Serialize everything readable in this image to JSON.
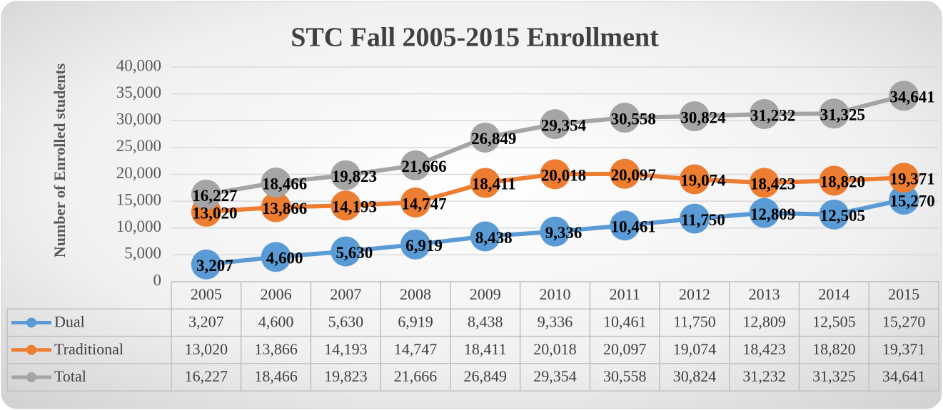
{
  "chart_data": {
    "type": "line",
    "title": "STC Fall 2005-2015 Enrollment",
    "y_label": "Number of Enrolled students",
    "categories": [
      "2005",
      "2006",
      "2007",
      "2008",
      "2009",
      "2010",
      "2011",
      "2012",
      "2013",
      "2014",
      "2015"
    ],
    "series": [
      {
        "name": "Dual",
        "color": "#5b9bd5",
        "values": [
          3207,
          4600,
          5630,
          6919,
          8438,
          9336,
          10461,
          11750,
          12809,
          12505,
          15270
        ],
        "value_labels": [
          "3,207",
          "4,600",
          "5,630",
          "6,919",
          "8,438",
          "9,336",
          "10,461",
          "11,750",
          "12,809",
          "12,505",
          "15,270"
        ]
      },
      {
        "name": "Traditional",
        "color": "#ed7d31",
        "values": [
          13020,
          13866,
          14193,
          14747,
          18411,
          20018,
          20097,
          19074,
          18423,
          18820,
          19371
        ],
        "value_labels": [
          "13,020",
          "13,866",
          "14,193",
          "14,747",
          "18,411",
          "20,018",
          "20,097",
          "19,074",
          "18,423",
          "18,820",
          "19,371"
        ]
      },
      {
        "name": "Total",
        "color": "#a5a5a5",
        "values": [
          16227,
          18466,
          19823,
          21666,
          26849,
          29354,
          30558,
          30824,
          31232,
          31325,
          34641
        ],
        "value_labels": [
          "16,227",
          "18,466",
          "19,823",
          "21,666",
          "26,849",
          "29,354",
          "30,558",
          "30,824",
          "31,232",
          "31,325",
          "34,641"
        ]
      }
    ],
    "ylim": [
      0,
      40000
    ],
    "yticks": [
      0,
      {
        "value": 5000,
        "label": "5,000"
      },
      {
        "value": 10000,
        "label": "10,000"
      },
      {
        "value": 15000,
        "label": "15,000"
      },
      {
        "value": 20000,
        "label": "20,000"
      },
      {
        "value": 25000,
        "label": "25,000"
      },
      {
        "value": 30000,
        "label": "30,000"
      },
      {
        "value": 35000,
        "label": "35,000"
      },
      {
        "value": 40000,
        "label": "40,000"
      }
    ],
    "grid": true,
    "data_table": true
  }
}
